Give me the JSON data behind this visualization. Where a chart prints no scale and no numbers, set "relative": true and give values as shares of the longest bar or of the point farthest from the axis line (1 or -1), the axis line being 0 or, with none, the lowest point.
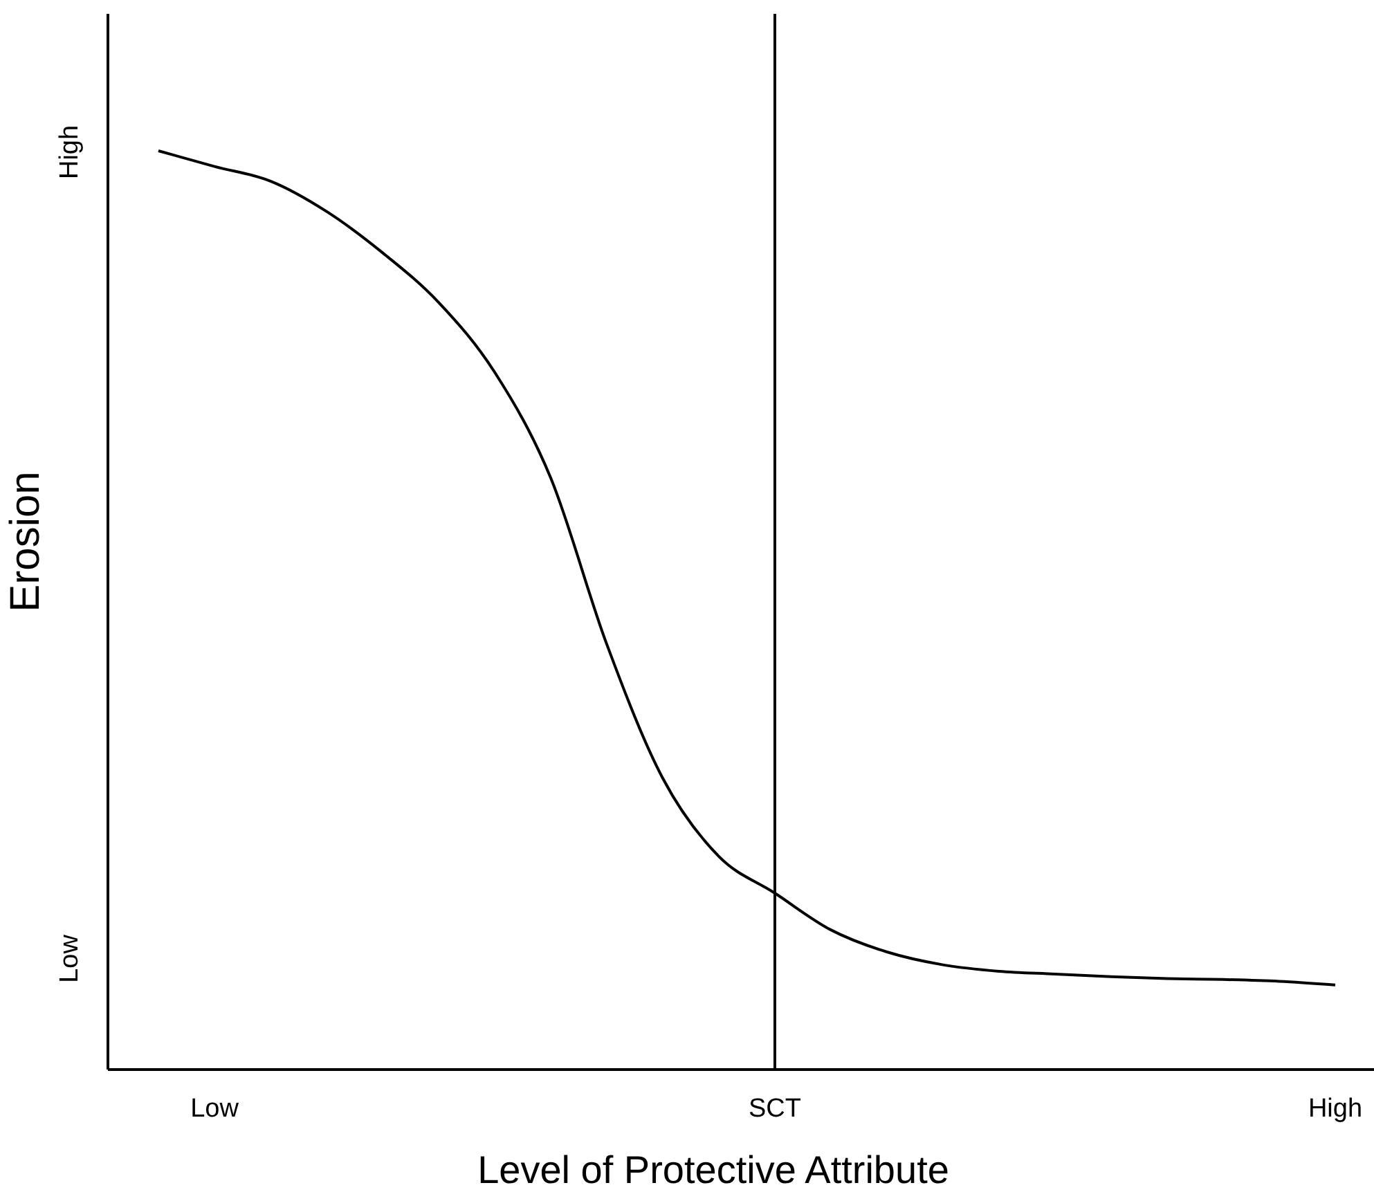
{
  "chart_data": {
    "type": "line",
    "relative": true,
    "xlabel": "Level of Protective Attribute",
    "ylabel": "Erosion",
    "categories": [
      null,
      "Low",
      null,
      null,
      null,
      null,
      null,
      null,
      null,
      null,
      null,
      "SCT",
      null,
      null,
      null,
      null,
      null,
      null,
      null,
      null,
      null,
      "High"
    ],
    "series": [
      {
        "color": "#000000",
        "values": [
          1,
          0.983,
          0.967,
          0.934,
          0.889,
          0.835,
          0.759,
          0.644,
          0.463,
          0.317,
          0.232,
          0.192,
          0.152,
          0.128,
          0.114,
          0.107,
          0.104,
          0.101,
          0.099,
          0.098,
          0.096,
          0.092
        ]
      }
    ],
    "annotations": [
      "High",
      "Low"
    ],
    "ref_lines": [
      {
        "axis": "x",
        "value": "SCT",
        "color": "#000000"
      }
    ],
    "line_style": "solid"
  }
}
